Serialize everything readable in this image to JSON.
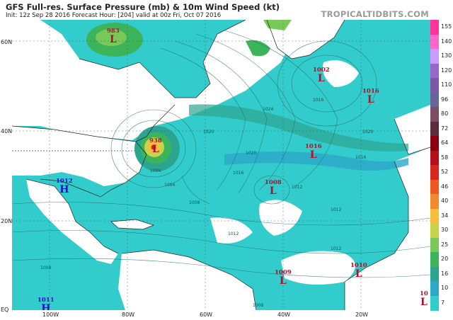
{
  "header": {
    "title": "GFS Full-res. Surface Pressure (mb) & 10m Wind Speed (kt)",
    "subtitle": "Init: 12z Sep 28 2016   Forecast Hour: [204]   valid at 00z Fri, Oct 07 2016",
    "brand": "TROPICALTIDBITS.COM"
  },
  "axes": {
    "lat_ticks": [
      "60N",
      "40N",
      "20N",
      "EQ"
    ],
    "lon_ticks": [
      "100W",
      "80W",
      "60W",
      "40W",
      "20W"
    ]
  },
  "colorbar": {
    "labels": [
      "155",
      "140",
      "130",
      "120",
      "110",
      "96",
      "80",
      "72",
      "64",
      "58",
      "52",
      "46",
      "40",
      "34",
      "30",
      "25",
      "20",
      "16",
      "10",
      "7"
    ],
    "colors": [
      "#ff3399",
      "#ff66cc",
      "#cc99ff",
      "#9966cc",
      "#7a5aa8",
      "#66659a",
      "#7d4d66",
      "#5a2d3a",
      "#8b0010",
      "#b4101c",
      "#d6281c",
      "#ec5a22",
      "#f08a2c",
      "#f6be3c",
      "#c8d24a",
      "#78c85a",
      "#3cb45a",
      "#2ca590",
      "#2ca8c8",
      "#33cccc"
    ]
  },
  "pressure_systems": [
    {
      "type": "L",
      "value": "983"
    },
    {
      "type": "L",
      "value": "1002"
    },
    {
      "type": "L",
      "value": "1016"
    },
    {
      "type": "L",
      "value": "938"
    },
    {
      "type": "L",
      "value": "1016"
    },
    {
      "type": "H",
      "value": "1012"
    },
    {
      "type": "L",
      "value": "1008"
    },
    {
      "type": "L",
      "value": "1009"
    },
    {
      "type": "L",
      "value": "1010"
    },
    {
      "type": "H",
      "value": "1011"
    },
    {
      "type": "L",
      "value": "10"
    }
  ],
  "isobar_labels": [
    "1024",
    "1020",
    "1020",
    "1016",
    "1016",
    "1012",
    "1012",
    "1012",
    "1008",
    "1008",
    "1004",
    "1020",
    "1016",
    "1012",
    "1008",
    "1004"
  ],
  "colors": {
    "ocean_light_wind": "#33cccc",
    "land_calm": "#ffffff",
    "low_color": "#b0102a",
    "high_color": "#1515c8"
  }
}
